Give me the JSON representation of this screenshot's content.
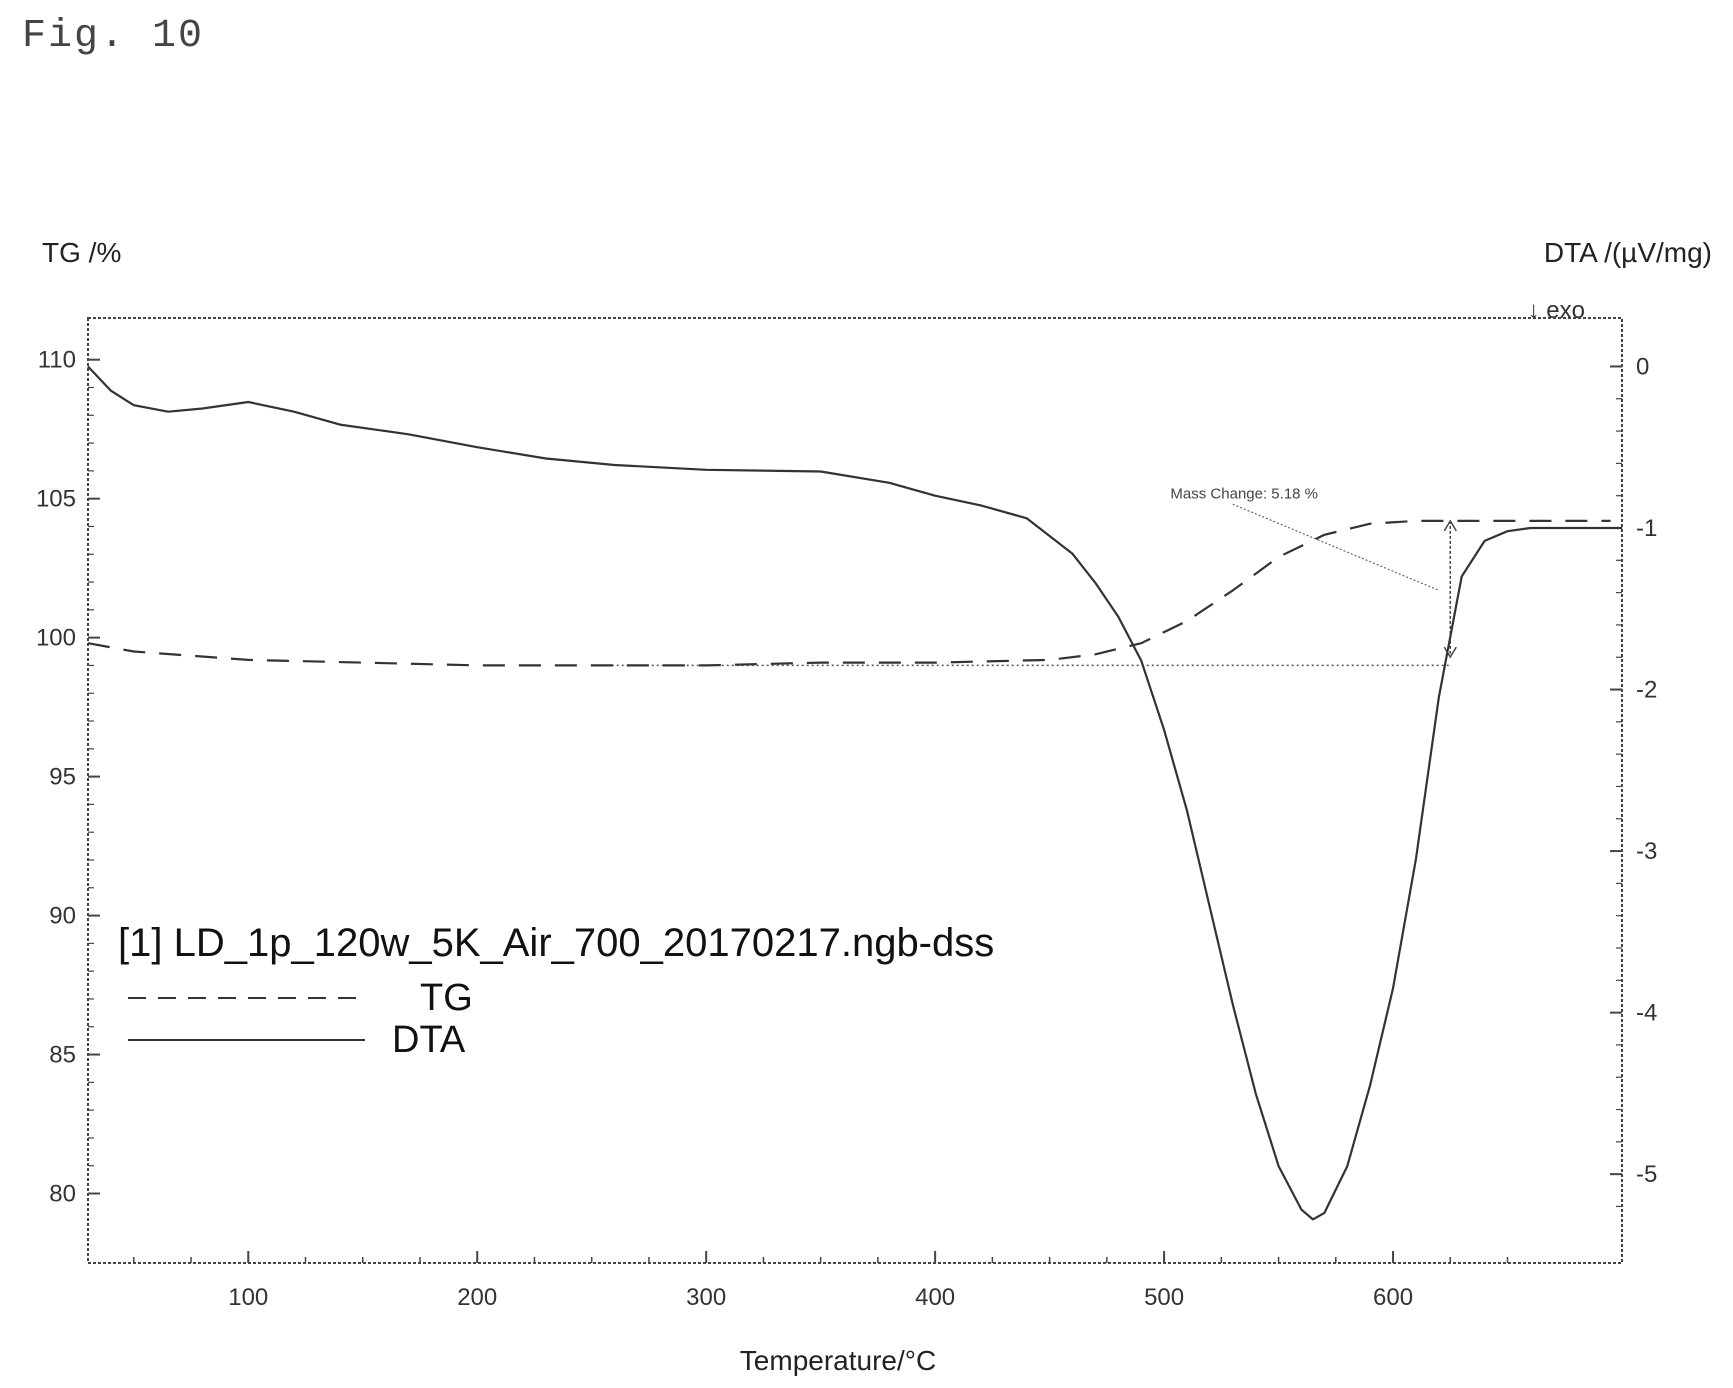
{
  "figure_label": "Fig. 10",
  "chart_data": {
    "type": "line",
    "title": "",
    "xlabel": "Temperature/°C",
    "ylabel_left": "TG /%",
    "ylabel_right": "DTA /(µV/mg)",
    "right_axis_note": "↓ exo",
    "xlim": [
      30,
      700
    ],
    "ylim_left": [
      77.5,
      111.5
    ],
    "ylim_right": [
      -5.55,
      0.3
    ],
    "x_ticks": [
      100,
      200,
      300,
      400,
      500,
      600
    ],
    "x_tick_labels": [
      "100",
      "200",
      "300",
      "400",
      "500",
      "600"
    ],
    "y_left_ticks": [
      110,
      105,
      100,
      95,
      90,
      85,
      80
    ],
    "y_left_tick_labels": [
      "110",
      "105",
      "100",
      "95",
      "90",
      "85",
      "80"
    ],
    "y_right_ticks": [
      0,
      -1,
      -2,
      -3,
      -4,
      -5
    ],
    "y_right_tick_labels": [
      "0",
      "-1",
      "-2",
      "-3",
      "-4",
      "-5"
    ],
    "legend_file": "[1] LD_1p_120w_5K_Air_700_20170217.ngb-dss",
    "annotation": "Mass Change: 5.18 %",
    "series": [
      {
        "name": "TG",
        "axis": "left",
        "style": "dashed",
        "x": [
          30,
          50,
          100,
          150,
          200,
          250,
          300,
          350,
          400,
          450,
          470,
          490,
          510,
          530,
          550,
          570,
          590,
          610,
          640,
          670,
          695
        ],
        "y": [
          99.8,
          99.5,
          99.2,
          99.1,
          99.0,
          99.0,
          99.0,
          99.1,
          99.1,
          99.2,
          99.4,
          99.8,
          100.6,
          101.7,
          102.9,
          103.7,
          104.1,
          104.2,
          104.2,
          104.2,
          104.2
        ]
      },
      {
        "name": "DTA",
        "axis": "right",
        "style": "solid",
        "x": [
          30,
          40,
          50,
          65,
          80,
          100,
          120,
          140,
          170,
          200,
          230,
          260,
          300,
          350,
          380,
          400,
          420,
          440,
          460,
          470,
          480,
          490,
          500,
          510,
          520,
          530,
          540,
          550,
          560,
          565,
          570,
          580,
          590,
          600,
          610,
          620,
          630,
          640,
          650,
          660,
          670,
          680,
          690,
          700
        ],
        "y": [
          0.0,
          -0.15,
          -0.24,
          -0.28,
          -0.26,
          -0.22,
          -0.28,
          -0.36,
          -0.42,
          -0.5,
          -0.57,
          -0.61,
          -0.64,
          -0.65,
          -0.72,
          -0.8,
          -0.86,
          -0.94,
          -1.16,
          -1.34,
          -1.55,
          -1.82,
          -2.25,
          -2.75,
          -3.35,
          -3.95,
          -4.5,
          -4.95,
          -5.22,
          -5.28,
          -5.24,
          -4.95,
          -4.45,
          -3.85,
          -3.05,
          -2.05,
          -1.3,
          -1.08,
          -1.02,
          -1.0,
          -1.0,
          -1.0,
          -1.0,
          -1.0
        ]
      }
    ],
    "mass_change_baseline": 99.0,
    "mass_change_top": 104.2,
    "mass_change_at_x": 625
  }
}
